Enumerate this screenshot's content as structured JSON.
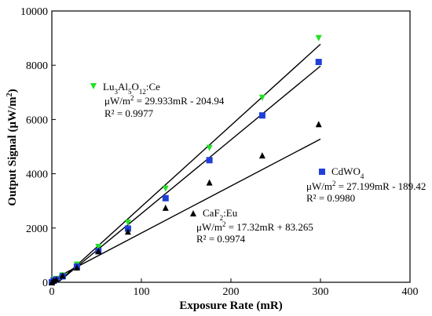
{
  "chart_data": {
    "type": "scatter",
    "xlabel": "Exposure Rate (mR)",
    "ylabel_main": "Output Signal (",
    "ylabel_unit": "μW/m",
    "ylabel_sup": "2",
    "ylabel_close": ")",
    "xlim": [
      0,
      400
    ],
    "ylim": [
      0,
      10000
    ],
    "xticks": [
      0,
      100,
      200,
      300,
      400
    ],
    "yticks": [
      0,
      2000,
      4000,
      6000,
      8000,
      10000
    ],
    "grid": false,
    "series": [
      {
        "name": "Lu3Al5O12:Ce",
        "marker": "triangle-down",
        "color": "#22e022",
        "x": [
          0,
          2,
          5,
          12,
          28,
          52,
          85,
          127,
          176,
          235,
          298
        ],
        "y": [
          0,
          80,
          120,
          250,
          650,
          1300,
          2200,
          3450,
          4950,
          6800,
          9000
        ],
        "fit": {
          "slope": 29.933,
          "intercept": -204.94
        }
      },
      {
        "name": "CdWO4",
        "marker": "square",
        "color": "#1f3fd8",
        "x": [
          0,
          2,
          5,
          12,
          28,
          52,
          85,
          127,
          176,
          235,
          298
        ],
        "y": [
          0,
          60,
          100,
          220,
          580,
          1150,
          1980,
          3100,
          4500,
          6150,
          8120
        ],
        "fit": {
          "slope": 27.199,
          "intercept": -189.42
        }
      },
      {
        "name": "CaF2:Eu",
        "marker": "triangle-up",
        "color": "#000000",
        "x": [
          0,
          2,
          5,
          12,
          28,
          52,
          85,
          127,
          176,
          235,
          298
        ],
        "y": [
          0,
          70,
          110,
          250,
          550,
          1150,
          1870,
          2750,
          3680,
          4680,
          5830
        ],
        "fit": {
          "slope": 17.32,
          "intercept": 83.265
        }
      }
    ],
    "annotations": [
      {
        "series": 0,
        "label": [
          [
            "Lu",
            ""
          ],
          [
            "3",
            "sub"
          ],
          [
            "Al",
            ""
          ],
          [
            "5",
            "sub"
          ],
          [
            "O",
            ""
          ],
          [
            "12",
            "sub"
          ],
          [
            ":Ce",
            ""
          ]
        ],
        "equation": [
          [
            "μW/m",
            ""
          ],
          [
            "2",
            "sup"
          ],
          [
            " = 29.933mR - 204.94",
            ""
          ]
        ],
        "r2": "R² = 0.9977"
      },
      {
        "series": 1,
        "label": [
          [
            "CdWO",
            ""
          ],
          [
            "4",
            "sub"
          ]
        ],
        "equation": [
          [
            "μW/m",
            ""
          ],
          [
            "2",
            "sup"
          ],
          [
            " = 27.199mR - 189.42",
            ""
          ]
        ],
        "r2": "R² = 0.9980"
      },
      {
        "series": 2,
        "label": [
          [
            "CaF",
            ""
          ],
          [
            "2",
            "sub"
          ],
          [
            ":Eu",
            ""
          ]
        ],
        "equation": [
          [
            "μW/m",
            ""
          ],
          [
            "2",
            "sup"
          ],
          [
            " = 17.32mR + 83.265",
            ""
          ]
        ],
        "r2": "R² = 0.9974"
      }
    ]
  }
}
